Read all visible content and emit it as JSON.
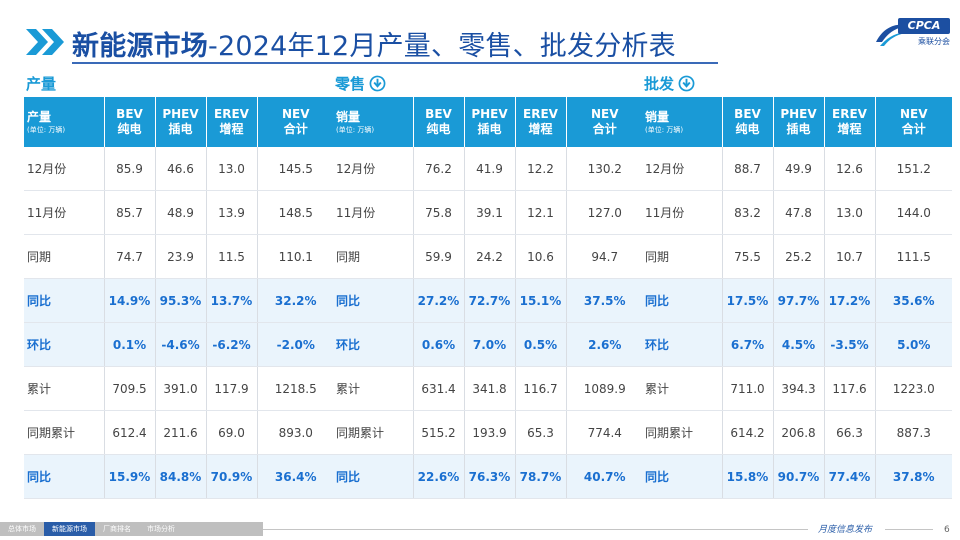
{
  "title_bold": "新能源市场",
  "title_rest": "-2024年12月产量、零售、批发分析表",
  "logo": {
    "top": "CPCA",
    "bottom": "乘联分会"
  },
  "sections": [
    {
      "heading": "产量",
      "has_icon": false,
      "header": {
        "label": "产量",
        "unit": "(单位: 万辆)",
        "cols": [
          [
            "BEV",
            "纯电"
          ],
          [
            "PHEV",
            "插电"
          ],
          [
            "EREV",
            "增程"
          ],
          [
            "NEV",
            "合计"
          ]
        ]
      },
      "rows": [
        {
          "label": "12月份",
          "values": [
            "85.9",
            "46.6",
            "13.0",
            "145.5"
          ],
          "hl": false
        },
        {
          "label": "11月份",
          "values": [
            "85.7",
            "48.9",
            "13.9",
            "148.5"
          ],
          "hl": false
        },
        {
          "label": "同期",
          "values": [
            "74.7",
            "23.9",
            "11.5",
            "110.1"
          ],
          "hl": false
        },
        {
          "label": "同比",
          "values": [
            "14.9%",
            "95.3%",
            "13.7%",
            "32.2%"
          ],
          "hl": true
        },
        {
          "label": "环比",
          "values": [
            "0.1%",
            "-4.6%",
            "-6.2%",
            "-2.0%"
          ],
          "hl": true
        },
        {
          "label": "累计",
          "values": [
            "709.5",
            "391.0",
            "117.9",
            "1218.5"
          ],
          "hl": false
        },
        {
          "label": "同期累计",
          "values": [
            "612.4",
            "211.6",
            "69.0",
            "893.0"
          ],
          "hl": false
        },
        {
          "label": "同比",
          "values": [
            "15.9%",
            "84.8%",
            "70.9%",
            "36.4%"
          ],
          "hl": true
        }
      ]
    },
    {
      "heading": "零售",
      "has_icon": true,
      "header": {
        "label": "销量",
        "unit": "(单位: 万辆)",
        "cols": [
          [
            "BEV",
            "纯电"
          ],
          [
            "PHEV",
            "插电"
          ],
          [
            "EREV",
            "增程"
          ],
          [
            "NEV",
            "合计"
          ]
        ]
      },
      "rows": [
        {
          "label": "12月份",
          "values": [
            "76.2",
            "41.9",
            "12.2",
            "130.2"
          ],
          "hl": false
        },
        {
          "label": "11月份",
          "values": [
            "75.8",
            "39.1",
            "12.1",
            "127.0"
          ],
          "hl": false
        },
        {
          "label": "同期",
          "values": [
            "59.9",
            "24.2",
            "10.6",
            "94.7"
          ],
          "hl": false
        },
        {
          "label": "同比",
          "values": [
            "27.2%",
            "72.7%",
            "15.1%",
            "37.5%"
          ],
          "hl": true
        },
        {
          "label": "环比",
          "values": [
            "0.6%",
            "7.0%",
            "0.5%",
            "2.6%"
          ],
          "hl": true
        },
        {
          "label": "累计",
          "values": [
            "631.4",
            "341.8",
            "116.7",
            "1089.9"
          ],
          "hl": false
        },
        {
          "label": "同期累计",
          "values": [
            "515.2",
            "193.9",
            "65.3",
            "774.4"
          ],
          "hl": false
        },
        {
          "label": "同比",
          "values": [
            "22.6%",
            "76.3%",
            "78.7%",
            "40.7%"
          ],
          "hl": true
        }
      ]
    },
    {
      "heading": "批发",
      "has_icon": true,
      "header": {
        "label": "销量",
        "unit": "(单位: 万辆)",
        "cols": [
          [
            "BEV",
            "纯电"
          ],
          [
            "PHEV",
            "插电"
          ],
          [
            "EREV",
            "增程"
          ],
          [
            "NEV",
            "合计"
          ]
        ]
      },
      "rows": [
        {
          "label": "12月份",
          "values": [
            "88.7",
            "49.9",
            "12.6",
            "151.2"
          ],
          "hl": false
        },
        {
          "label": "11月份",
          "values": [
            "83.2",
            "47.8",
            "13.0",
            "144.0"
          ],
          "hl": false
        },
        {
          "label": "同期",
          "values": [
            "75.5",
            "25.2",
            "10.7",
            "111.5"
          ],
          "hl": false
        },
        {
          "label": "同比",
          "values": [
            "17.5%",
            "97.7%",
            "17.2%",
            "35.6%"
          ],
          "hl": true
        },
        {
          "label": "环比",
          "values": [
            "6.7%",
            "4.5%",
            "-3.5%",
            "5.0%"
          ],
          "hl": true
        },
        {
          "label": "累计",
          "values": [
            "711.0",
            "394.3",
            "117.6",
            "1223.0"
          ],
          "hl": false
        },
        {
          "label": "同期累计",
          "values": [
            "614.2",
            "206.8",
            "66.3",
            "887.3"
          ],
          "hl": false
        },
        {
          "label": "同比",
          "values": [
            "15.8%",
            "90.7%",
            "77.4%",
            "37.8%"
          ],
          "hl": true
        }
      ]
    }
  ],
  "footer": {
    "tabs": [
      {
        "label": "总体市场",
        "active": false
      },
      {
        "label": "新能源市场",
        "active": true
      },
      {
        "label": "厂商排名",
        "active": false
      },
      {
        "label": "市场分析",
        "active": false
      }
    ],
    "report_label": "月度信息发布",
    "page_number": "6"
  },
  "colors": {
    "accent": "#1a9ad6",
    "title": "#1a4fa3",
    "highlight_text": "#1a6fd0",
    "highlight_bg": "#eaf4fc",
    "chevron": "#1a9ad6"
  },
  "icons": {
    "title_marker": "double-chevron-right-icon",
    "section_marker": "download-circle-icon"
  }
}
